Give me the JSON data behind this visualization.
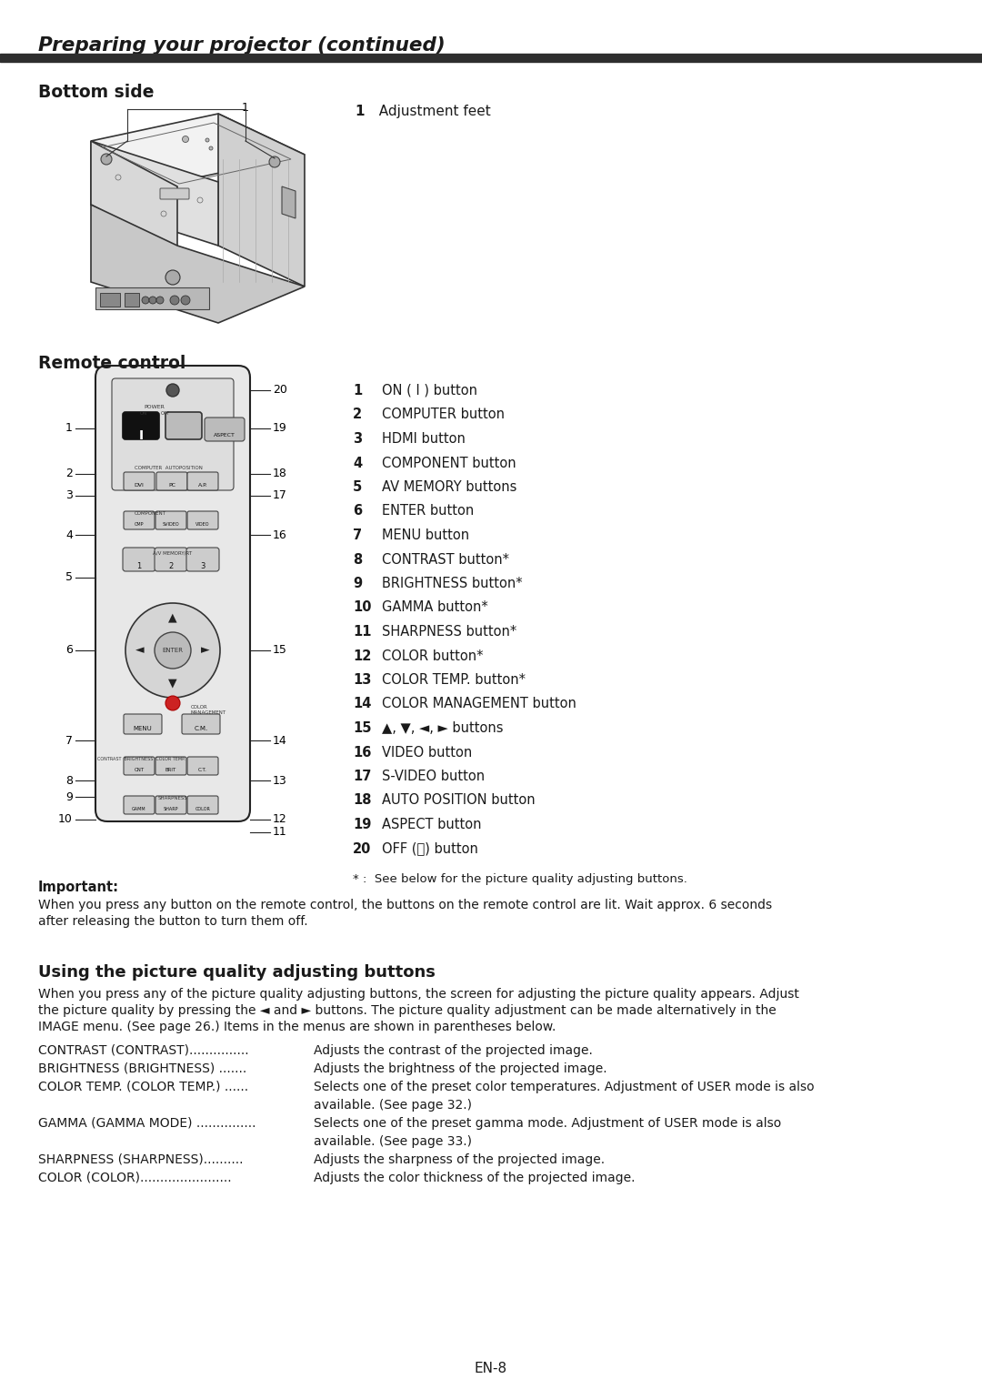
{
  "page_title": "Preparing your projector (continued)",
  "section1_title": "Bottom side",
  "section2_title": "Remote control",
  "remote_items": [
    [
      "1",
      "ON ( I ) button"
    ],
    [
      "2",
      "COMPUTER button"
    ],
    [
      "3",
      "HDMI button"
    ],
    [
      "4",
      "COMPONENT button"
    ],
    [
      "5",
      "AV MEMORY buttons"
    ],
    [
      "6",
      "ENTER button"
    ],
    [
      "7",
      "MENU button"
    ],
    [
      "8",
      "CONTRAST button*"
    ],
    [
      "9",
      "BRIGHTNESS button*"
    ],
    [
      "10",
      "GAMMA button*"
    ],
    [
      "11",
      "SHARPNESS button*"
    ],
    [
      "12",
      "COLOR button*"
    ],
    [
      "13",
      "COLOR TEMP. button*"
    ],
    [
      "14",
      "COLOR MANAGEMENT button"
    ],
    [
      "15",
      "▲, ▼, ◄, ► buttons"
    ],
    [
      "16",
      "VIDEO button"
    ],
    [
      "17",
      "S-VIDEO button"
    ],
    [
      "18",
      "AUTO POSITION button"
    ],
    [
      "19",
      "ASPECT button"
    ],
    [
      "20",
      "OFF (⏻) button"
    ]
  ],
  "note_star": "* :  See below for the picture quality adjusting buttons.",
  "important_label": "Important:",
  "important_line1": "When you press any button on the remote control, the buttons on the remote control are lit. Wait approx. 6 seconds",
  "important_line2": "after releasing the button to turn them off.",
  "section3_title": "Using the picture quality adjusting buttons",
  "section3_line1": "When you press any of the picture quality adjusting buttons, the screen for adjusting the picture quality appears. Adjust",
  "section3_line2": "the picture quality by pressing the ◄ and ► buttons. The picture quality adjustment can be made alternatively in the",
  "section3_line3": "IMAGE menu. (See page 26.) Items in the menus are shown in parentheses below.",
  "adj_rows": [
    [
      "CONTRAST (CONTRAST)...............",
      "Adjusts the contrast of the projected image.",
      false
    ],
    [
      "BRIGHTNESS (BRIGHTNESS) .......",
      "Adjusts the brightness of the projected image.",
      false
    ],
    [
      "COLOR TEMP. (COLOR TEMP.) ......",
      "Selects one of the preset color temperatures. Adjustment of USER mode is also",
      true
    ],
    [
      "",
      "available. (See page 32.)",
      false
    ],
    [
      "GAMMA (GAMMA MODE) ...............",
      "Selects one of the preset gamma mode. Adjustment of USER mode is also",
      true
    ],
    [
      "",
      "available. (See page 33.)",
      false
    ],
    [
      "SHARPNESS (SHARPNESS)..........",
      "Adjusts the sharpness of the projected image.",
      false
    ],
    [
      "COLOR (COLOR).......................",
      "Adjusts the color thickness of the projected image.",
      false
    ]
  ],
  "page_number": "EN-8",
  "bg": "#ffffff",
  "dark": "#1a1a1a",
  "bar_color": "#2e2e2e"
}
